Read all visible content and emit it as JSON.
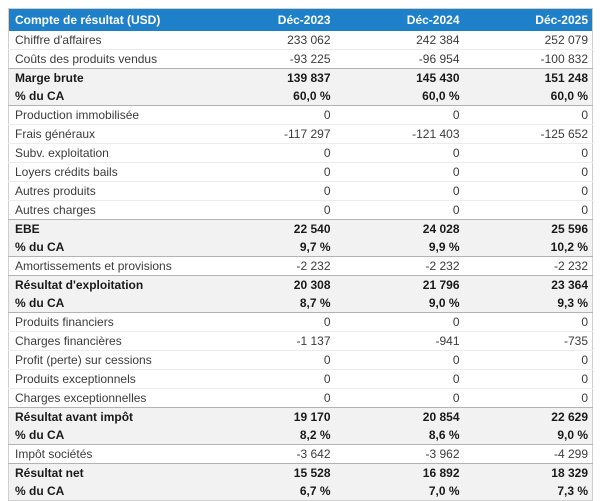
{
  "colors": {
    "header_bg": "#1e80c8",
    "header_text": "#ffffff",
    "emphasis_row_bg": "#f2f2f2",
    "row_text": "#3b3b3b",
    "section_border": "#b3b3b3",
    "row_border": "#ececec"
  },
  "table": {
    "title_column": "Compte de résultat (USD)",
    "columns": [
      "Déc-2023",
      "Déc-2024",
      "Déc-2025"
    ],
    "rows": [
      {
        "label": "Chiffre d'affaires",
        "values": [
          "233 062",
          "242 384",
          "252 079"
        ],
        "emphasis": false
      },
      {
        "label": "Coûts des produits vendus",
        "values": [
          "-93 225",
          "-96 954",
          "-100 832"
        ],
        "emphasis": false
      },
      {
        "label": "Marge brute",
        "values": [
          "139 837",
          "145 430",
          "151 248"
        ],
        "emphasis": true
      },
      {
        "label": "% du CA",
        "values": [
          "60,0 %",
          "60,0 %",
          "60,0 %"
        ],
        "emphasis": true
      },
      {
        "label": "Production immobilisée",
        "values": [
          "0",
          "0",
          "0"
        ],
        "emphasis": false
      },
      {
        "label": "Frais généraux",
        "values": [
          "-117 297",
          "-121 403",
          "-125 652"
        ],
        "emphasis": false
      },
      {
        "label": "Subv. exploitation",
        "values": [
          "0",
          "0",
          "0"
        ],
        "emphasis": false
      },
      {
        "label": "Loyers crédits bails",
        "values": [
          "0",
          "0",
          "0"
        ],
        "emphasis": false
      },
      {
        "label": "Autres produits",
        "values": [
          "0",
          "0",
          "0"
        ],
        "emphasis": false
      },
      {
        "label": "Autres charges",
        "values": [
          "0",
          "0",
          "0"
        ],
        "emphasis": false
      },
      {
        "label": "EBE",
        "values": [
          "22 540",
          "24 028",
          "25 596"
        ],
        "emphasis": true
      },
      {
        "label": "% du CA",
        "values": [
          "9,7 %",
          "9,9 %",
          "10,2 %"
        ],
        "emphasis": true
      },
      {
        "label": "Amortissements et provisions",
        "values": [
          "-2 232",
          "-2 232",
          "-2 232"
        ],
        "emphasis": false
      },
      {
        "label": "Résultat d'exploitation",
        "values": [
          "20 308",
          "21 796",
          "23 364"
        ],
        "emphasis": true
      },
      {
        "label": "% du CA",
        "values": [
          "8,7 %",
          "9,0 %",
          "9,3 %"
        ],
        "emphasis": true
      },
      {
        "label": "Produits financiers",
        "values": [
          "0",
          "0",
          "0"
        ],
        "emphasis": false
      },
      {
        "label": "Charges financières",
        "values": [
          "-1 137",
          "-941",
          "-735"
        ],
        "emphasis": false
      },
      {
        "label": "Profit (perte) sur cessions",
        "values": [
          "0",
          "0",
          "0"
        ],
        "emphasis": false
      },
      {
        "label": "Produits exceptionnels",
        "values": [
          "0",
          "0",
          "0"
        ],
        "emphasis": false
      },
      {
        "label": "Charges exceptionnelles",
        "values": [
          "0",
          "0",
          "0"
        ],
        "emphasis": false
      },
      {
        "label": "Résultat avant impôt",
        "values": [
          "19 170",
          "20 854",
          "22 629"
        ],
        "emphasis": true
      },
      {
        "label": "% du CA",
        "values": [
          "8,2 %",
          "8,6 %",
          "9,0 %"
        ],
        "emphasis": true
      },
      {
        "label": "Impôt sociétés",
        "values": [
          "-3 642",
          "-3 962",
          "-4 299"
        ],
        "emphasis": false
      },
      {
        "label": "Résultat net",
        "values": [
          "15 528",
          "16 892",
          "18 329"
        ],
        "emphasis": true
      },
      {
        "label": "% du CA",
        "values": [
          "6,7 %",
          "7,0 %",
          "7,3 %"
        ],
        "emphasis": true
      }
    ]
  }
}
